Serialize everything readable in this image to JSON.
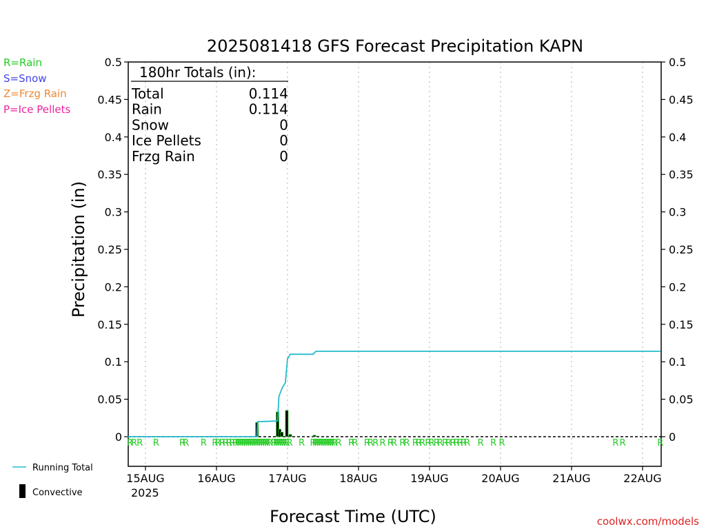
{
  "chart_data": {
    "type": "line",
    "title": "2025081418 GFS Forecast Precipitation KAPN",
    "xlabel": "Forecast Time (UTC)",
    "ylabel": "Precipitation (in)",
    "ylim": [
      0,
      0.5
    ],
    "y_ticks": [
      "0.5",
      "0.45",
      "0.4",
      "0.35",
      "0.3",
      "0.25",
      "0.2",
      "0.15",
      "0.1",
      "0.05",
      "0"
    ],
    "x_ticks": [
      {
        "label": "15AUG",
        "sub": "2025"
      },
      {
        "label": "16AUG",
        "sub": ""
      },
      {
        "label": "17AUG",
        "sub": ""
      },
      {
        "label": "18AUG",
        "sub": ""
      },
      {
        "label": "19AUG",
        "sub": ""
      },
      {
        "label": "20AUG",
        "sub": ""
      },
      {
        "label": "21AUG",
        "sub": ""
      },
      {
        "label": "22AUG",
        "sub": ""
      }
    ],
    "grid": "vertical dotted at day boundaries",
    "legend_top_left": [
      {
        "text": "R=Rain",
        "color": "#22cc22"
      },
      {
        "text": "S=Snow",
        "color": "#4444ee"
      },
      {
        "text": "Z=Frzg Rain",
        "color": "#ee8833"
      },
      {
        "text": "P=Ice Pellets",
        "color": "#ee2299"
      }
    ],
    "legend_bottom_left": [
      {
        "text": "Running Total",
        "color": "#22bbcc"
      },
      {
        "text": "Convective",
        "color": "#000000"
      }
    ],
    "totals_box": {
      "header": "180hr Totals (in):",
      "rows": [
        {
          "label": "Total",
          "value": "0.114"
        },
        {
          "label": "Rain",
          "value": "0.114"
        },
        {
          "label": "Snow",
          "value": "0"
        },
        {
          "label": "Ice Pellets",
          "value": "0"
        },
        {
          "label": "Frzg Rain",
          "value": "0"
        }
      ]
    },
    "series": [
      {
        "name": "Running Total",
        "color": "#22bbcc",
        "points": [
          [
            -0.25,
            0
          ],
          [
            1.57,
            0
          ],
          [
            1.58,
            0.02
          ],
          [
            1.86,
            0.021
          ],
          [
            1.88,
            0.054
          ],
          [
            1.93,
            0.066
          ],
          [
            1.97,
            0.072
          ],
          [
            2.0,
            0.104
          ],
          [
            2.04,
            0.11
          ],
          [
            2.36,
            0.11
          ],
          [
            2.4,
            0.114
          ],
          [
            7.25,
            0.114
          ]
        ]
      }
    ],
    "precip_bars": [
      {
        "x": 1.57,
        "value": 0.019
      },
      {
        "x": 1.86,
        "value": 0.033
      },
      {
        "x": 1.89,
        "value": 0.01
      },
      {
        "x": 1.92,
        "value": 0.006
      },
      {
        "x": 1.99,
        "value": 0.035
      },
      {
        "x": 2.04,
        "value": 0.003
      },
      {
        "x": 2.38,
        "value": 0.002
      }
    ],
    "ptype_markers": {
      "label": "R",
      "color": "#22cc22",
      "x": [
        -0.22,
        -0.16,
        -0.08,
        0.15,
        0.52,
        0.57,
        0.82,
        0.98,
        1.02,
        1.08,
        1.13,
        1.18,
        1.22,
        1.27,
        1.3,
        1.33,
        1.36,
        1.39,
        1.42,
        1.45,
        1.48,
        1.51,
        1.54,
        1.57,
        1.6,
        1.63,
        1.66,
        1.69,
        1.72,
        1.75,
        1.81,
        1.84,
        1.87,
        1.9,
        1.93,
        1.96,
        1.99,
        2.03,
        2.2,
        2.36,
        2.39,
        2.42,
        2.45,
        2.48,
        2.51,
        2.54,
        2.57,
        2.6,
        2.63,
        2.66,
        2.72,
        2.9,
        2.95,
        3.12,
        3.17,
        3.24,
        3.34,
        3.45,
        3.5,
        3.62,
        3.68,
        3.8,
        3.85,
        3.9,
        3.98,
        4.03,
        4.1,
        4.15,
        4.22,
        4.27,
        4.33,
        4.38,
        4.43,
        4.48,
        4.53,
        4.72,
        4.9,
        5.02,
        6.62,
        6.72,
        7.25,
        7.35,
        7.82,
        7.97,
        8.08,
        8.18
      ]
    }
  },
  "credit": "coolwx.com/models"
}
